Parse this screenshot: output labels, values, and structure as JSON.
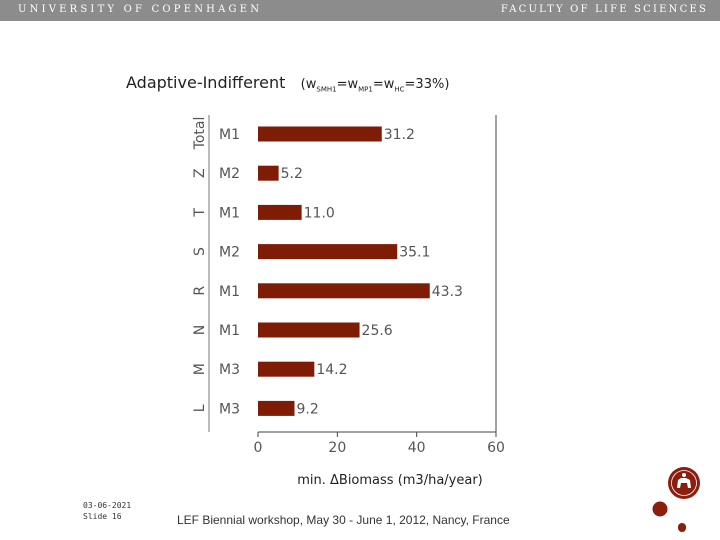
{
  "header": {
    "university": "UNIVERSITY OF COPENHAGEN",
    "faculty": "FACULTY OF LIFE SCIENCES"
  },
  "title": {
    "main": "Adaptive-Indifferent",
    "eq_open": "(w",
    "sub1": "SMH1",
    "eq1": "=w",
    "sub2": "MP1",
    "eq2": "=w",
    "sub3": "HC",
    "eq_close": "=33%)"
  },
  "footer": {
    "date": "03-06-2021",
    "slide": "Slide 16",
    "event": "LEF Biennial workshop, May 30 - June 1, 2012, Nancy, France"
  },
  "colors": {
    "bar": "#7f1c05",
    "topbar": "#8c8c8c",
    "axis": "#444444",
    "seal": "#8b1e0c"
  },
  "chart_data": {
    "type": "bar",
    "orientation": "horizontal",
    "categories": [
      "M1",
      "M2",
      "M1",
      "M2",
      "M1",
      "M1",
      "M3",
      "M3"
    ],
    "group_labels": [
      "Total",
      "Z",
      "T",
      "S",
      "R",
      "N",
      "M",
      "L"
    ],
    "values": [
      31.2,
      5.2,
      11.0,
      35.1,
      43.3,
      25.6,
      14.2,
      9.2
    ],
    "value_labels": [
      "31.2",
      "5.2",
      "11.0",
      "35.1",
      "43.3",
      "25.6",
      "14.2",
      "9.2"
    ],
    "x_ticks": [
      "0",
      "20",
      "40",
      "60"
    ],
    "xlim": [
      0,
      60
    ],
    "xlabel": "min. ΔBiomass (m3/ha/year)",
    "grid": false
  }
}
